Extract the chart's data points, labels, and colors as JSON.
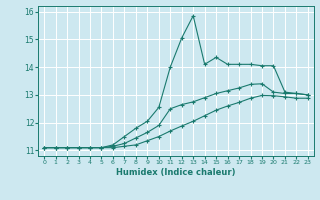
{
  "xlabel": "Humidex (Indice chaleur)",
  "bg_color": "#cde8f0",
  "grid_color": "#ffffff",
  "line_color": "#1a7a6e",
  "xlim": [
    -0.5,
    23.5
  ],
  "ylim": [
    10.8,
    16.2
  ],
  "xticks": [
    0,
    1,
    2,
    3,
    4,
    5,
    6,
    7,
    8,
    9,
    10,
    11,
    12,
    13,
    14,
    15,
    16,
    17,
    18,
    19,
    20,
    21,
    22,
    23
  ],
  "yticks": [
    11,
    12,
    13,
    14,
    15,
    16
  ],
  "line1_x": [
    0,
    1,
    2,
    3,
    4,
    5,
    6,
    7,
    8,
    9,
    10,
    11,
    12,
    13,
    14,
    15,
    16,
    17,
    18,
    19,
    20,
    21,
    22,
    23
  ],
  "line1_y": [
    11.1,
    11.1,
    11.1,
    11.1,
    11.1,
    11.1,
    11.2,
    11.5,
    11.8,
    12.05,
    12.55,
    14.0,
    15.05,
    15.85,
    14.1,
    14.35,
    14.1,
    14.1,
    14.1,
    14.05,
    14.05,
    13.1,
    13.05,
    13.0
  ],
  "line2_x": [
    0,
    1,
    2,
    3,
    4,
    5,
    6,
    7,
    8,
    9,
    10,
    11,
    12,
    13,
    14,
    15,
    16,
    17,
    18,
    19,
    20,
    21,
    22,
    23
  ],
  "line2_y": [
    11.1,
    11.1,
    11.1,
    11.1,
    11.1,
    11.1,
    11.15,
    11.25,
    11.45,
    11.65,
    11.9,
    12.5,
    12.65,
    12.75,
    12.9,
    13.05,
    13.15,
    13.25,
    13.38,
    13.4,
    13.1,
    13.05,
    13.05,
    13.0
  ],
  "line3_x": [
    0,
    1,
    2,
    3,
    4,
    5,
    6,
    7,
    8,
    9,
    10,
    11,
    12,
    13,
    14,
    15,
    16,
    17,
    18,
    19,
    20,
    21,
    22,
    23
  ],
  "line3_y": [
    11.1,
    11.1,
    11.1,
    11.1,
    11.1,
    11.1,
    11.1,
    11.15,
    11.2,
    11.35,
    11.5,
    11.7,
    11.88,
    12.05,
    12.25,
    12.45,
    12.6,
    12.73,
    12.88,
    12.98,
    12.97,
    12.93,
    12.88,
    12.88
  ]
}
